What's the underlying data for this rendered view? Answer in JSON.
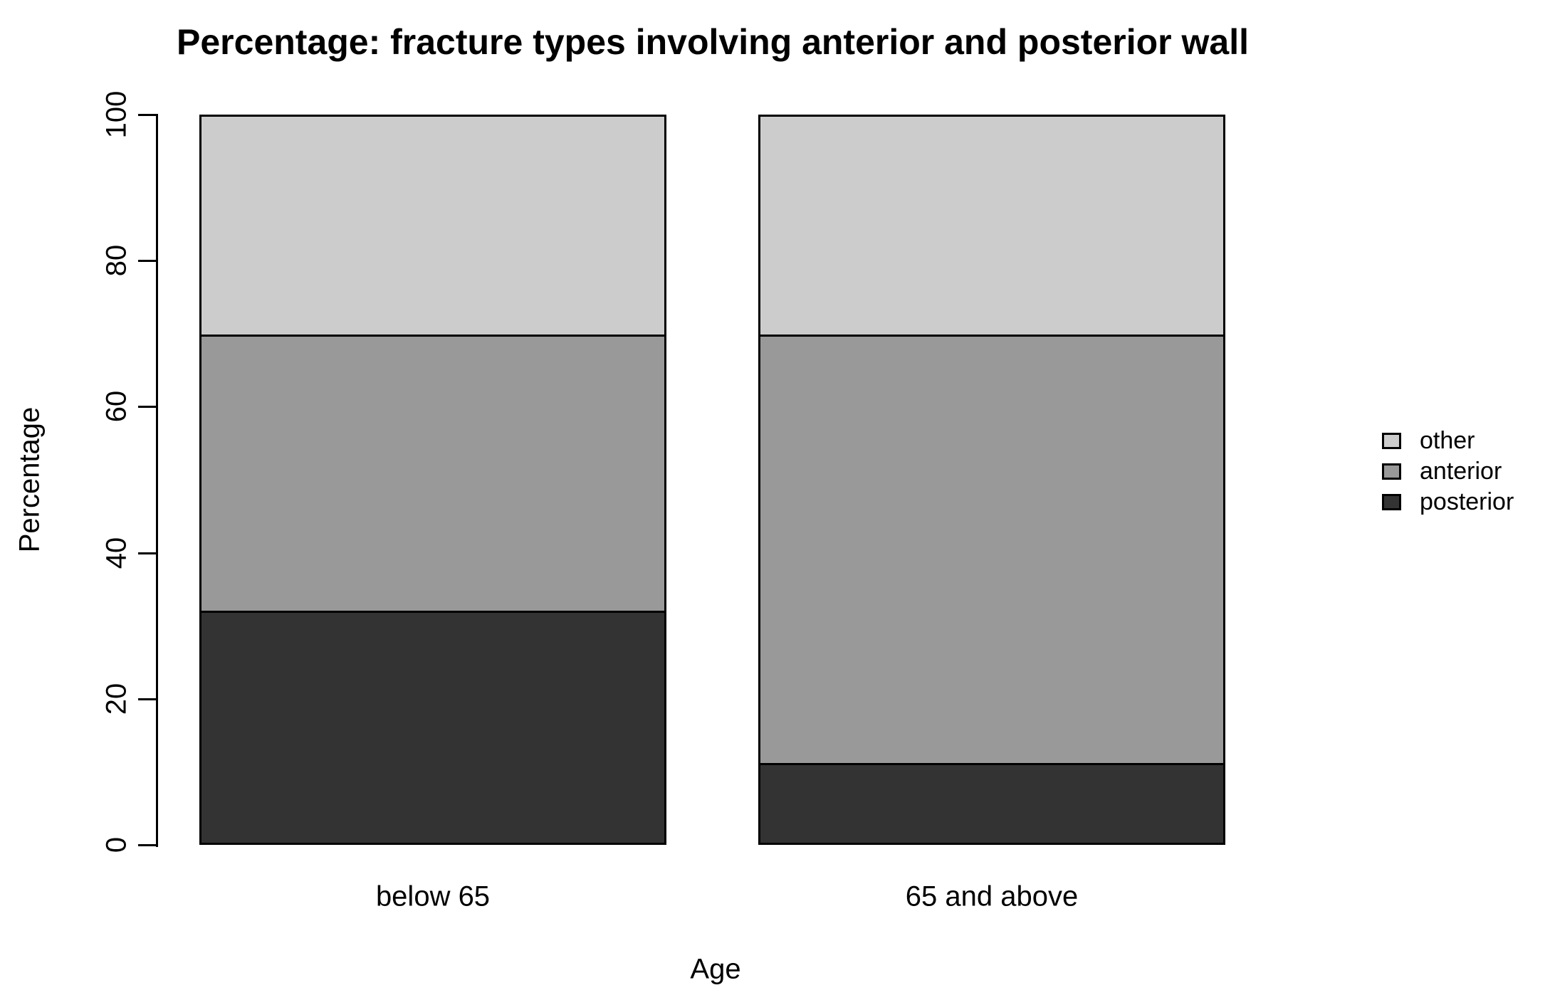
{
  "chart_data": {
    "type": "bar",
    "stacked": true,
    "title": "Percentage: fracture types involving anterior and posterior wall",
    "xlabel": "Age",
    "ylabel": "Percentage",
    "ylim": [
      0,
      100
    ],
    "yticks": [
      0,
      20,
      40,
      60,
      80,
      100
    ],
    "categories": [
      "below 65",
      "65 and above"
    ],
    "series": [
      {
        "name": "posterior",
        "values": [
          32,
          11
        ],
        "color": "#333333"
      },
      {
        "name": "anterior",
        "values": [
          38,
          59
        ],
        "color": "#999999"
      },
      {
        "name": "other",
        "values": [
          30,
          30
        ],
        "color": "#cccccc"
      }
    ],
    "legend_order": [
      "other",
      "anterior",
      "posterior"
    ],
    "legend_position": "right",
    "grid": false,
    "bar_border_color": "#000000",
    "axis_color": "#000000",
    "background": "#ffffff"
  }
}
